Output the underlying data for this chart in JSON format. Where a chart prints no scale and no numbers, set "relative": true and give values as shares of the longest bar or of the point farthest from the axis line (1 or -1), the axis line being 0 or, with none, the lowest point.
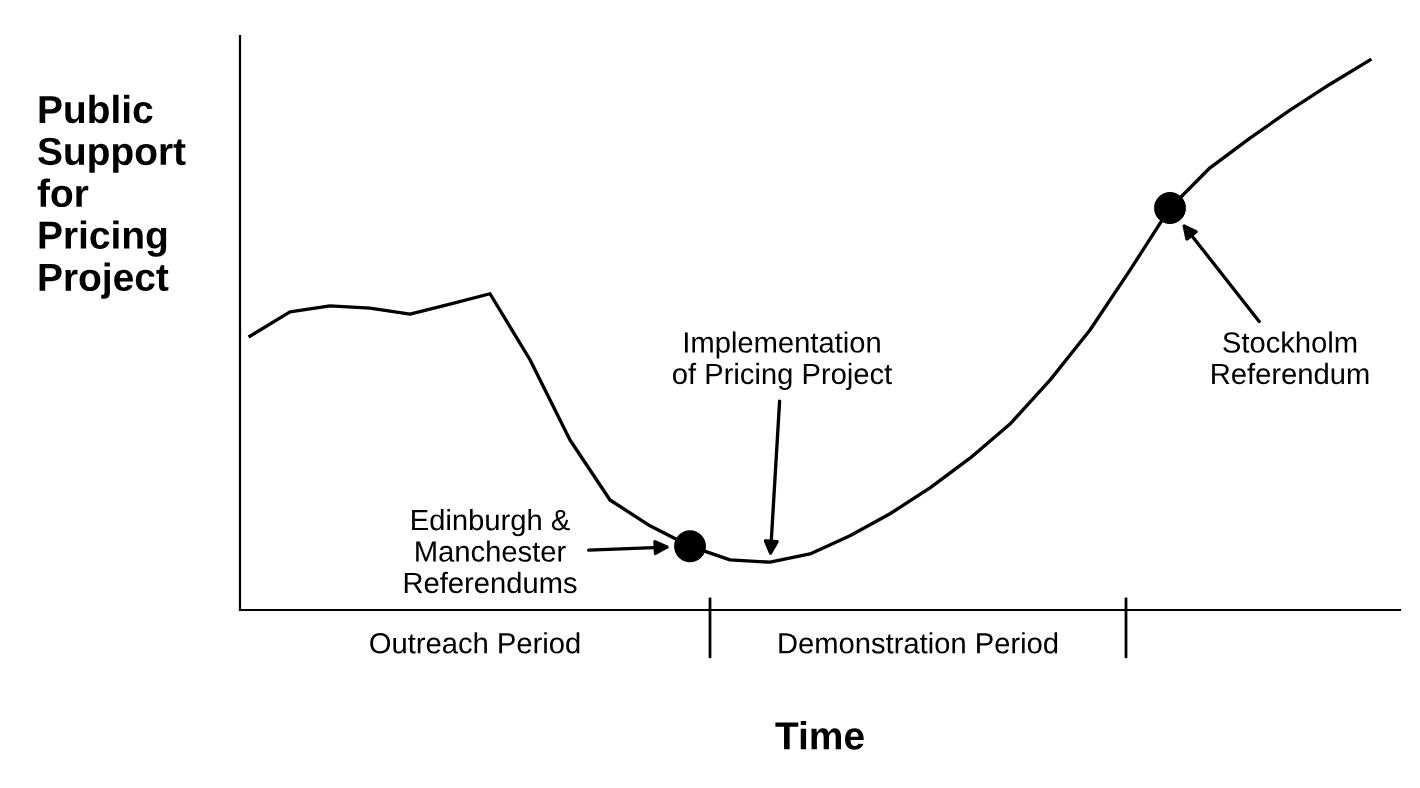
{
  "chart_data": {
    "type": "line",
    "relative": true,
    "xlabel": "Time",
    "ylabel": "Public\nSupport\nfor\nPricing\nProject",
    "categories": [
      null,
      null,
      null,
      null,
      null,
      null,
      null,
      null,
      null,
      null,
      null,
      null,
      null,
      null,
      null,
      null,
      null,
      null,
      null,
      null,
      null,
      null,
      null,
      null,
      null,
      null,
      null,
      null,
      null
    ],
    "series": [
      {
        "color": "#000000",
        "values": [
          0.498,
          0.542,
          0.553,
          0.549,
          0.538,
          0.556,
          0.575,
          0.455,
          0.309,
          0.2,
          0.153,
          0.116,
          0.091,
          0.087,
          0.102,
          0.135,
          0.175,
          0.222,
          0.276,
          0.338,
          0.418,
          0.509,
          0.618,
          0.731,
          0.804,
          0.858,
          0.909,
          0.956,
          1.0
        ]
      }
    ],
    "annotations": [
      "Edinburgh &\nManchester\nReferendums",
      "Implementation\nof Pricing Project",
      "Stockholm\nReferendum",
      "Outreach Period",
      "Demonstration Period"
    ],
    "tick_labels": false
  }
}
